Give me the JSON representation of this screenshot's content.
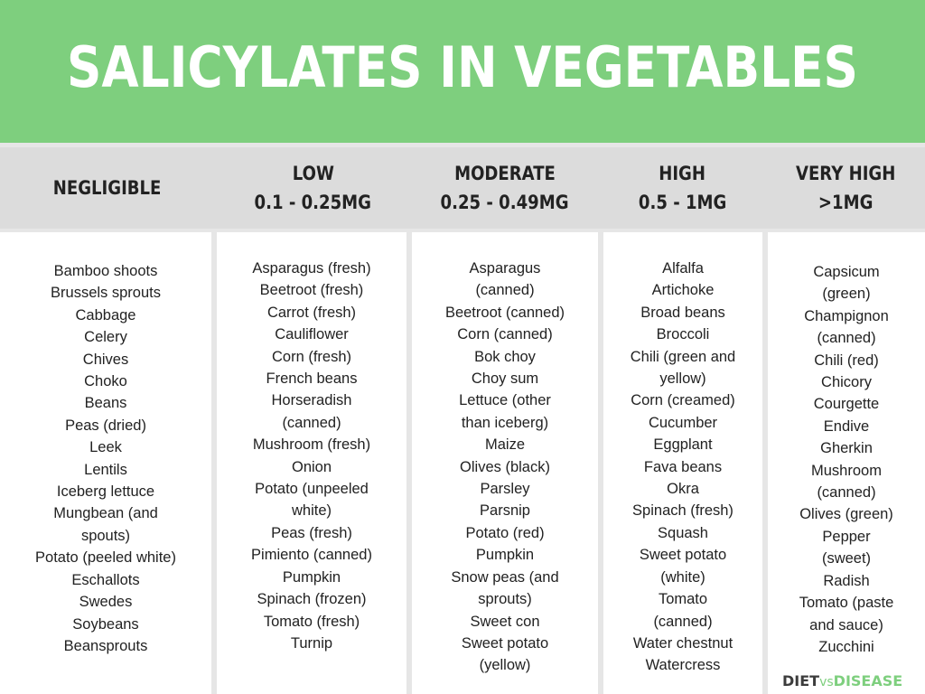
{
  "title": "SALICYLATES IN VEGETABLES",
  "colors": {
    "banner": "#7ecf7e",
    "header_bg": "#dcdcdc",
    "column_bg": "#ffffff",
    "divider": "#e6e6e6",
    "text": "#222222",
    "logo_accent": "#7ecf7e"
  },
  "columns": [
    {
      "heading": [
        "NEGLIGIBLE"
      ],
      "items": [
        "Bamboo shoots",
        "Brussels sprouts",
        "Cabbage",
        "Celery",
        "Chives",
        "Choko",
        "Beans",
        "Peas (dried)",
        "Leek",
        "Lentils",
        "Iceberg lettuce",
        "Mungbean (and",
        "spouts)",
        "Potato (peeled white)",
        "Eschallots",
        "Swedes",
        "Soybeans",
        "Beansprouts"
      ]
    },
    {
      "heading": [
        "LOW",
        "0.1 - 0.25MG"
      ],
      "items": [
        "Asparagus (fresh)",
        "Beetroot (fresh)",
        "Carrot (fresh)",
        "Cauliflower",
        "Corn (fresh)",
        "French beans",
        "Horseradish",
        "(canned)",
        "Mushroom (fresh)",
        "Onion",
        "Potato (unpeeled",
        "white)",
        "Peas (fresh)",
        "Pimiento (canned)",
        "Pumpkin",
        "Spinach (frozen)",
        "Tomato (fresh)",
        "Turnip"
      ]
    },
    {
      "heading": [
        "MODERATE",
        "0.25 - 0.49MG"
      ],
      "items": [
        "Asparagus",
        "(canned)",
        "Beetroot (canned)",
        "Corn (canned)",
        "Bok choy",
        "Choy sum",
        "Lettuce (other",
        "than iceberg)",
        "Maize",
        "Olives (black)",
        "Parsley",
        "Parsnip",
        "Potato (red)",
        "Pumpkin",
        "Snow peas (and",
        "sprouts)",
        "Sweet con",
        "Sweet potato",
        "(yellow)"
      ]
    },
    {
      "heading": [
        "HIGH",
        "0.5 - 1MG"
      ],
      "items": [
        "Alfalfa",
        "Artichoke",
        "Broad beans",
        "Broccoli",
        "Chili (green and",
        "yellow)",
        "Corn (creamed)",
        "Cucumber",
        "Eggplant",
        "Fava beans",
        "Okra",
        "Spinach (fresh)",
        "Squash",
        "Sweet potato",
        "(white)",
        "Tomato",
        "(canned)",
        "Water chestnut",
        "Watercress"
      ]
    },
    {
      "heading": [
        "VERY HIGH",
        ">1MG"
      ],
      "items": [
        "Capsicum",
        "(green)",
        "Champignon",
        "(canned)",
        "Chili (red)",
        "Chicory",
        "Courgette",
        "Endive",
        "Gherkin",
        "Mushroom",
        "(canned)",
        "Olives (green)",
        "Pepper",
        "(sweet)",
        "Radish",
        "Tomato (paste",
        "and sauce)",
        "Zucchini"
      ]
    }
  ],
  "logo": {
    "diet": "DIET",
    "vs": "vs",
    "disease": "DISEASE"
  }
}
